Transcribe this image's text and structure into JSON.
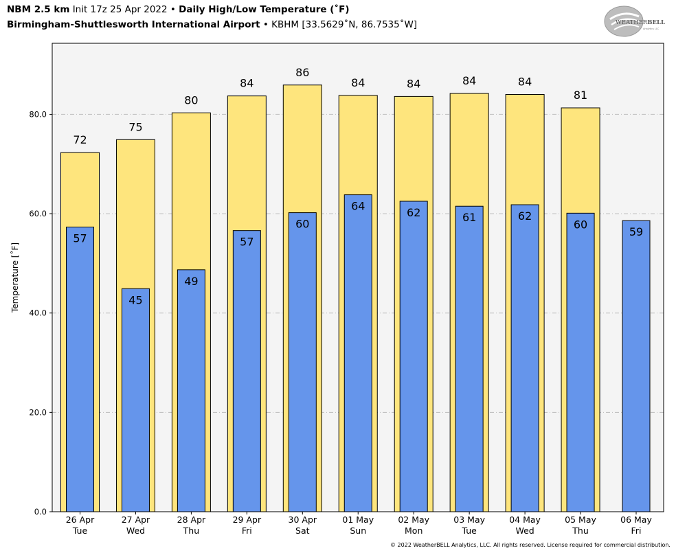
{
  "header": {
    "model": "NBM 2.5 km",
    "init": "Init 17z 25 Apr 2022",
    "bullet": "•",
    "product": "Daily High/Low Temperature (˚F)",
    "station": "Birmingham-Shuttlesworth International Airport",
    "station_info": "KBHM [33.5629˚N, 86.7535˚W]"
  },
  "logo": {
    "text_weather": "WEATHER",
    "text_bell": "BELL",
    "text_sub": "Analytics LLC"
  },
  "footer": {
    "copyright": "© 2022 WeatherBELL Analytics, LLC. All rights reserved. License required for commercial distribution."
  },
  "chart_data": {
    "type": "bar",
    "categories": [
      "26 Apr",
      "27 Apr",
      "28 Apr",
      "29 Apr",
      "30 Apr",
      "01 May",
      "02 May",
      "03 May",
      "04 May",
      "05 May",
      "06 May"
    ],
    "days": [
      "Tue",
      "Wed",
      "Thu",
      "Fri",
      "Sat",
      "Sun",
      "Mon",
      "Tue",
      "Wed",
      "Thu",
      "Fri"
    ],
    "series": [
      {
        "values": [
          72.3,
          74.9,
          80.3,
          83.7,
          85.9,
          83.8,
          83.6,
          84.2,
          84.0,
          81.3,
          null
        ],
        "labels": [
          "72",
          "75",
          "80",
          "84",
          "86",
          "84",
          "84",
          "84",
          "84",
          "81",
          null
        ],
        "color": "#fee57d"
      },
      {
        "values": [
          57.3,
          44.9,
          48.7,
          56.6,
          60.2,
          63.8,
          62.5,
          61.5,
          61.8,
          60.1,
          58.6
        ],
        "labels": [
          "57",
          "45",
          "49",
          "57",
          "60",
          "64",
          "62",
          "61",
          "62",
          "60",
          "59"
        ],
        "color": "#6595eb"
      }
    ],
    "ylabel": "Temperature [˚F]",
    "ylim": [
      0,
      94.3
    ],
    "yticks": [
      0,
      20,
      40,
      60,
      80
    ],
    "ytick_labels": [
      "0.0",
      "20.0",
      "40.0",
      "60.0",
      "80.0"
    ],
    "grid": true,
    "colors": {
      "plot_bg": "#f4f4f4",
      "grid": "#bbbbbb",
      "edge": "#000000"
    }
  }
}
